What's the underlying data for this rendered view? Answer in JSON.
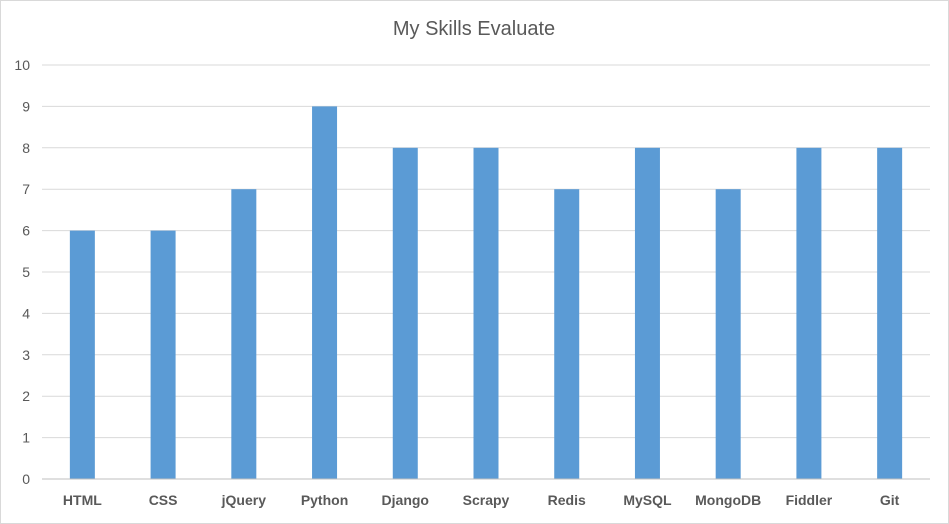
{
  "chart_data": {
    "type": "bar",
    "title": "My Skills Evaluate",
    "xlabel": "",
    "ylabel": "",
    "categories": [
      "HTML",
      "CSS",
      "jQuery",
      "Python",
      "Django",
      "Scrapy",
      "Redis",
      "MySQL",
      "MongoDB",
      "Fiddler",
      "Git"
    ],
    "values": [
      6,
      6,
      7,
      9,
      8,
      8,
      7,
      8,
      7,
      8,
      8
    ],
    "ylim": [
      0,
      10
    ],
    "yticks": [
      0,
      1,
      2,
      3,
      4,
      5,
      6,
      7,
      8,
      9,
      10
    ],
    "grid": true,
    "legend": "none",
    "colors": {
      "bar": "#5b9bd5",
      "grid": "#d9d9d9",
      "text": "#595959",
      "axis": "#bfbfbf"
    }
  }
}
